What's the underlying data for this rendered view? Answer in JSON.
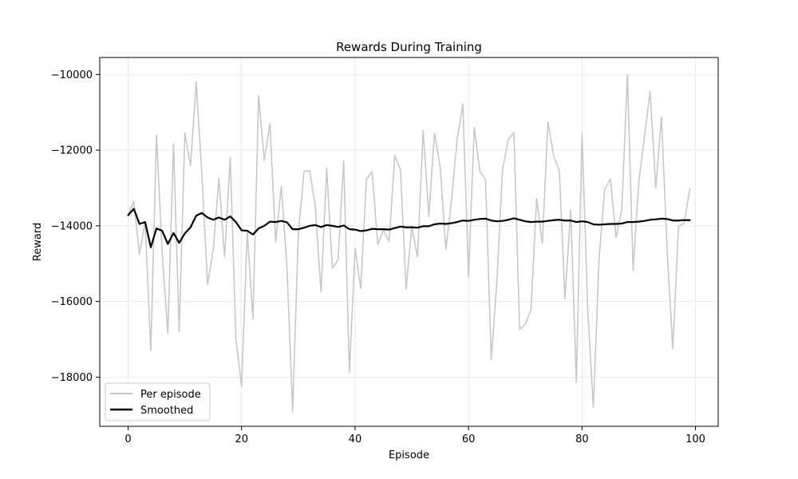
{
  "chart_data": {
    "type": "line",
    "title": "Rewards During Training",
    "xlabel": "Episode",
    "ylabel": "Reward",
    "xlim": [
      -5,
      104
    ],
    "ylim": [
      -19300,
      -9550
    ],
    "xticks": [
      0,
      20,
      40,
      60,
      80,
      100
    ],
    "yticks": [
      -18000,
      -16000,
      -14000,
      -12000,
      -10000
    ],
    "xtick_labels": [
      "0",
      "20",
      "40",
      "60",
      "80",
      "100"
    ],
    "ytick_labels": [
      "−18000",
      "−16000",
      "−14000",
      "−12000",
      "−10000"
    ],
    "grid": true,
    "legend_position": "lower-left",
    "series": [
      {
        "name": "Per episode",
        "color": "#c8c8c8",
        "values": [
          -13700,
          -13350,
          -14750,
          -13900,
          -17300,
          -11600,
          -14700,
          -16850,
          -11830,
          -16800,
          -11550,
          -12400,
          -10200,
          -12650,
          -15550,
          -14650,
          -12750,
          -14830,
          -12200,
          -17000,
          -18250,
          -14150,
          -16470,
          -10560,
          -12270,
          -11300,
          -14430,
          -12950,
          -15100,
          -18900,
          -14200,
          -12560,
          -12540,
          -13500,
          -15750,
          -12480,
          -15130,
          -14900,
          -12300,
          -17880,
          -14600,
          -15650,
          -12770,
          -12570,
          -14500,
          -14100,
          -14420,
          -12150,
          -12520,
          -15680,
          -14000,
          -14830,
          -11480,
          -13750,
          -11550,
          -12430,
          -14630,
          -13320,
          -11700,
          -10780,
          -15350,
          -11400,
          -12560,
          -12790,
          -17540,
          -15450,
          -12500,
          -11720,
          -11530,
          -16740,
          -16600,
          -16220,
          -13270,
          -14460,
          -11250,
          -12150,
          -12540,
          -15930,
          -13570,
          -18130,
          -11540,
          -16230,
          -18800,
          -14870,
          -13030,
          -12760,
          -14300,
          -13580,
          -10000,
          -15170,
          -12860,
          -11650,
          -10450,
          -13000,
          -11120,
          -14640,
          -17250,
          -14020,
          -13920,
          -13020
        ]
      },
      {
        "name": "Smoothed",
        "color": "#000000",
        "values": [
          -13720,
          -13550,
          -13950,
          -13900,
          -14570,
          -14070,
          -14130,
          -14480,
          -14190,
          -14450,
          -14200,
          -14040,
          -13730,
          -13660,
          -13780,
          -13840,
          -13780,
          -13840,
          -13750,
          -13900,
          -14120,
          -14130,
          -14230,
          -14070,
          -14000,
          -13890,
          -13900,
          -13870,
          -13910,
          -14090,
          -14090,
          -14050,
          -14000,
          -13980,
          -14030,
          -13980,
          -14000,
          -14030,
          -13990,
          -14090,
          -14100,
          -14140,
          -14120,
          -14080,
          -14090,
          -14090,
          -14100,
          -14060,
          -14020,
          -14040,
          -14040,
          -14050,
          -14010,
          -14010,
          -13960,
          -13940,
          -13950,
          -13930,
          -13900,
          -13860,
          -13870,
          -13840,
          -13820,
          -13810,
          -13860,
          -13880,
          -13870,
          -13840,
          -13800,
          -13840,
          -13880,
          -13900,
          -13890,
          -13890,
          -13870,
          -13850,
          -13840,
          -13860,
          -13860,
          -13900,
          -13880,
          -13900,
          -13960,
          -13970,
          -13960,
          -13950,
          -13950,
          -13940,
          -13900,
          -13900,
          -13890,
          -13870,
          -13840,
          -13830,
          -13810,
          -13820,
          -13860,
          -13860,
          -13850,
          -13850
        ]
      }
    ]
  }
}
